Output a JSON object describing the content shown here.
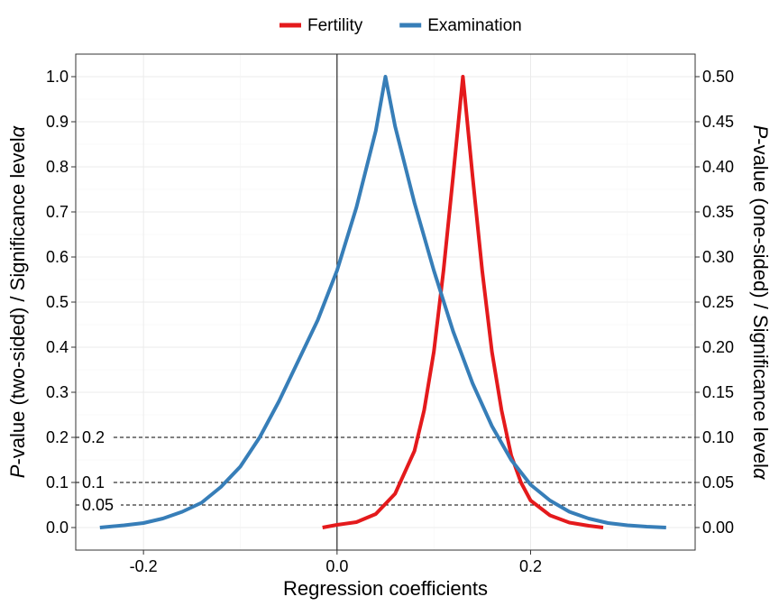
{
  "chart_data": {
    "type": "line",
    "xlabel": "Regression coefficients",
    "ylabel_left": "P-value (two-sided) / Significance level α",
    "ylabel_right": "P-value (one-sided) / Significance level α",
    "ylabel_prefix": "P",
    "ylabel_left_rest": "-value (two-sided) / Significance level",
    "ylabel_right_rest": "-value (one-sided) / Significance level",
    "alpha_symbol": "α",
    "xlim": [
      -0.27,
      0.37
    ],
    "ylim": [
      -0.05,
      1.05
    ],
    "x_ticks": [
      -0.2,
      0.0,
      0.2
    ],
    "x_tick_labels": [
      "-0.2",
      "0.0",
      "0.2"
    ],
    "y_left_ticks": [
      0.0,
      0.1,
      0.2,
      0.3,
      0.4,
      0.5,
      0.6,
      0.7,
      0.8,
      0.9,
      1.0
    ],
    "y_left_tick_labels": [
      "0.0",
      "0.1",
      "0.2",
      "0.3",
      "0.4",
      "0.5",
      "0.6",
      "0.7",
      "0.8",
      "0.9",
      "1.0"
    ],
    "y_right_tick_labels": [
      "0.00",
      "0.05",
      "0.10",
      "0.15",
      "0.20",
      "0.25",
      "0.30",
      "0.35",
      "0.40",
      "0.45",
      "0.50"
    ],
    "grid": true,
    "legend_position": "top",
    "vertical_reference_x": 0.0,
    "reference_lines": [
      {
        "y": 0.2,
        "label": "0.2"
      },
      {
        "y": 0.1,
        "label": "0.1"
      },
      {
        "y": 0.05,
        "label": "0.05"
      }
    ],
    "series": [
      {
        "name": "Fertility",
        "color": "#e41a1c",
        "x": [
          -0.015,
          0.0,
          0.02,
          0.04,
          0.06,
          0.08,
          0.09,
          0.1,
          0.11,
          0.12,
          0.13,
          0.14,
          0.15,
          0.16,
          0.17,
          0.18,
          0.19,
          0.2,
          0.22,
          0.24,
          0.26,
          0.275
        ],
        "y": [
          0.0,
          0.006,
          0.012,
          0.03,
          0.075,
          0.17,
          0.26,
          0.39,
          0.57,
          0.78,
          1.0,
          0.78,
          0.57,
          0.39,
          0.26,
          0.16,
          0.1,
          0.06,
          0.027,
          0.011,
          0.004,
          0.0
        ]
      },
      {
        "name": "Examination",
        "color": "#377eb8",
        "x": [
          -0.245,
          -0.22,
          -0.2,
          -0.18,
          -0.16,
          -0.14,
          -0.12,
          -0.1,
          -0.08,
          -0.06,
          -0.04,
          -0.02,
          0.0,
          0.02,
          0.04,
          0.05,
          0.06,
          0.08,
          0.1,
          0.12,
          0.14,
          0.16,
          0.18,
          0.2,
          0.22,
          0.24,
          0.26,
          0.28,
          0.3,
          0.32,
          0.34
        ],
        "y": [
          0.0,
          0.005,
          0.01,
          0.02,
          0.035,
          0.055,
          0.09,
          0.135,
          0.2,
          0.28,
          0.37,
          0.46,
          0.57,
          0.71,
          0.88,
          1.0,
          0.89,
          0.72,
          0.57,
          0.435,
          0.32,
          0.225,
          0.15,
          0.095,
          0.06,
          0.035,
          0.02,
          0.01,
          0.005,
          0.002,
          0.0
        ]
      }
    ]
  }
}
